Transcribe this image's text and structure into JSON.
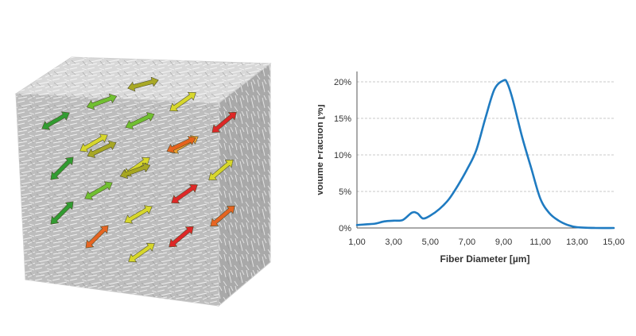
{
  "figure": {
    "colors": {
      "cube_top": "#d8d8d8",
      "cube_front": "#bdbdbd",
      "cube_side": "#a9a9a9",
      "fiber_texture": "#ffffff",
      "arrow_palette": [
        "#2a9a2a",
        "#6cc02a",
        "#a6a61c",
        "#d8d824",
        "#f2a028",
        "#e8601a",
        "#e02020"
      ]
    }
  },
  "chart_data": {
    "type": "line",
    "xlabel": "Fiber Diameter [µm]",
    "ylabel": "Volume Fraction [%]",
    "xlim": [
      1,
      15
    ],
    "ylim": [
      0,
      20
    ],
    "x_ticks": [
      "1,00",
      "3,00",
      "5,00",
      "7,00",
      "9,00",
      "11,00",
      "13,00",
      "15,00"
    ],
    "y_ticks": [
      "0%",
      "5%",
      "10%",
      "15%",
      "20%"
    ],
    "grid": "horizontal dashed",
    "line_color": "#1f7bc1",
    "series": [
      {
        "x": [
          1.0,
          1.5,
          2.0,
          2.5,
          3.0,
          3.5,
          4.0,
          4.3,
          4.6,
          5.0,
          5.5,
          6.0,
          6.5,
          7.0,
          7.5,
          8.0,
          8.5,
          9.0,
          9.2,
          9.5,
          10.0,
          10.5,
          11.0,
          11.5,
          12.0,
          12.5,
          13.0,
          14.0,
          15.0
        ],
        "y": [
          0.4,
          0.5,
          0.6,
          0.9,
          1.0,
          1.1,
          2.1,
          2.0,
          1.3,
          1.7,
          2.6,
          3.9,
          5.8,
          8.0,
          10.6,
          15.0,
          19.0,
          20.2,
          19.8,
          17.5,
          12.5,
          8.2,
          4.0,
          2.0,
          1.0,
          0.4,
          0.1,
          0.0,
          0.0
        ]
      }
    ]
  }
}
